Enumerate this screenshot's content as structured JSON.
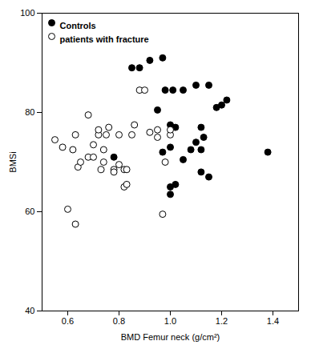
{
  "chart_data": {
    "type": "scatter",
    "xlabel": "BMD Femur neck (g/cm²)",
    "ylabel": "BMSi",
    "xlim": [
      0.5,
      1.5
    ],
    "ylim": [
      40,
      100
    ],
    "xticks": [
      0.6,
      0.8,
      {
        "value": 1,
        "label": "1.0"
      },
      1.2,
      1.4
    ],
    "yticks": [
      40,
      60,
      80,
      100
    ],
    "grid": false,
    "legend": "upper left",
    "series": [
      {
        "name": "Controls",
        "color": "#000000",
        "marker": "filled",
        "x": [
          0.88,
          0.92,
          0.97,
          0.98,
          1.01,
          0.85,
          1.05,
          1.1,
          1.15,
          1.12,
          1.08,
          1.18,
          1.2,
          1.22,
          1.38,
          0.97,
          1.0,
          1.0,
          1.02,
          0.78,
          1.05,
          1.12,
          1.1,
          0.95,
          1.0,
          1.02,
          1.12,
          1.13,
          1.15,
          1.0
        ],
        "values": [
          89.0,
          90.5,
          91.0,
          84.5,
          84.5,
          89.0,
          84.5,
          85.5,
          85.5,
          77.0,
          72.5,
          81.0,
          81.5,
          82.5,
          72.0,
          72.0,
          73.0,
          63.5,
          65.5,
          71.0,
          70.5,
          72.5,
          74.0,
          80.5,
          77.5,
          77.0,
          68.0,
          75.0,
          67.0,
          65.0
        ]
      },
      {
        "name": "patients with fracture",
        "color": "#000000",
        "marker": "open",
        "x": [
          0.55,
          0.58,
          0.6,
          0.62,
          0.63,
          0.64,
          0.65,
          0.68,
          0.68,
          0.7,
          0.7,
          0.72,
          0.72,
          0.73,
          0.74,
          0.74,
          0.75,
          0.76,
          0.78,
          0.78,
          0.8,
          0.8,
          0.82,
          0.82,
          0.83,
          0.83,
          0.85,
          0.86,
          0.88,
          0.9,
          0.92,
          0.95,
          0.95,
          0.97,
          0.98,
          1.0,
          1.0,
          0.63
        ],
        "values": [
          74.5,
          73.0,
          60.5,
          72.5,
          75.5,
          69.0,
          70.0,
          71.0,
          79.5,
          71.0,
          73.5,
          75.5,
          76.5,
          68.5,
          70.0,
          72.5,
          75.5,
          77.0,
          68.5,
          68.0,
          69.5,
          75.5,
          65.0,
          68.5,
          65.5,
          68.5,
          75.5,
          77.5,
          84.5,
          84.5,
          76.0,
          76.5,
          75.0,
          59.5,
          70.0,
          75.5,
          76.5,
          57.5
        ]
      }
    ]
  }
}
